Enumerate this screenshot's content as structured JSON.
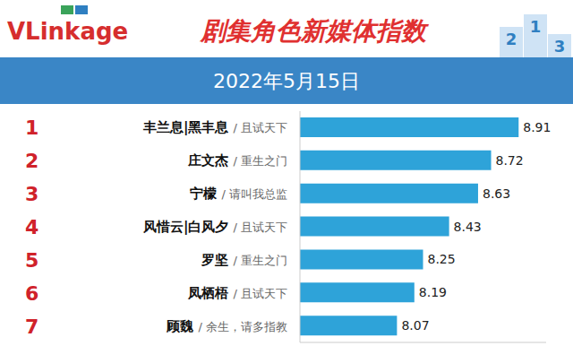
{
  "logo": "VLinkage",
  "podium": [
    2,
    1,
    3
  ],
  "chart_data": {
    "type": "bar",
    "orientation": "horizontal",
    "title": "剧集角色新媒体指数",
    "subtitle": "2022年5月15日",
    "ranks": [
      1,
      2,
      3,
      4,
      5,
      6,
      7
    ],
    "categories": [
      "丰兰息|黑丰息",
      "庄文杰",
      "宁檬",
      "风惜云|白风夕",
      "罗坚",
      "凤栖梧",
      "顾魏"
    ],
    "shows": [
      "/ 且试天下",
      "/ 重生之门",
      "/ 请叫我总监",
      "/ 且试天下",
      "/ 重生之门",
      "/ 且试天下",
      "/ 余生，请多指教"
    ],
    "values": [
      8.91,
      8.72,
      8.63,
      8.43,
      8.25,
      8.19,
      8.07
    ],
    "color": "#2ea3d9",
    "xlim": [
      7.4,
      9.1
    ],
    "xticks": [],
    "tick_labels": false,
    "grid": false,
    "data_labels": true
  }
}
